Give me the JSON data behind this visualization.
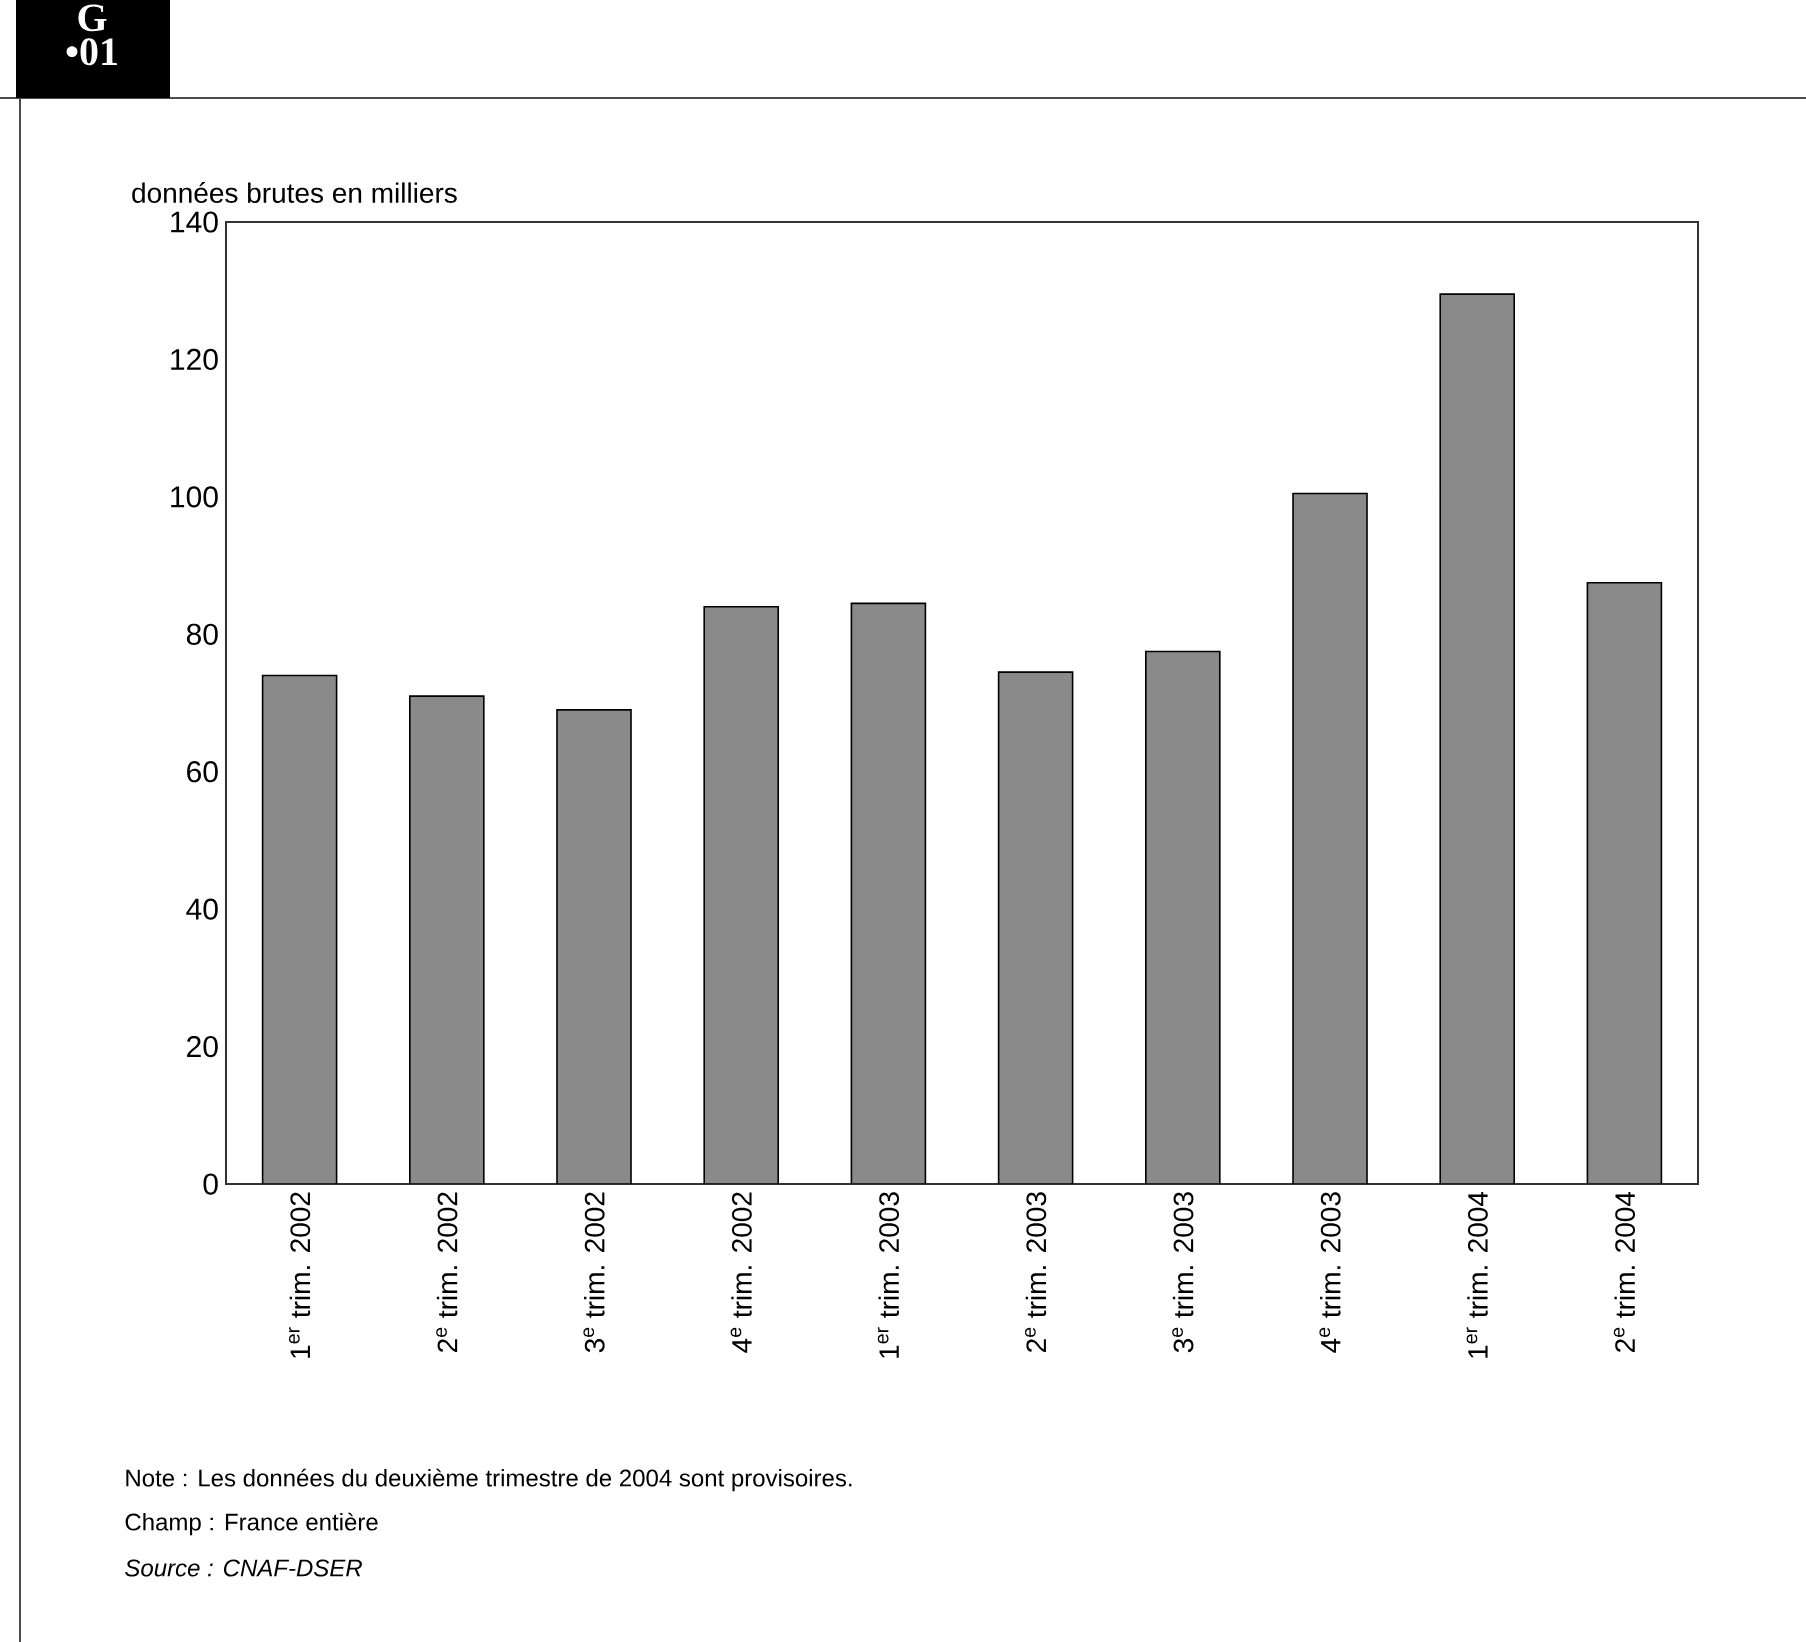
{
  "chart_data": {
    "type": "bar",
    "ylabel": "données brutes en milliers",
    "categories": [
      "1$^{er}$ trim. 2002",
      "2$^{e}$ trim. 2002",
      "3$^{e}$ trim. 2002",
      "4$^{e}$ trim. 2002",
      "1$^{er}$ trim. 2003",
      "2$^{e}$ trim. 2003",
      "3$^{e}$ trim. 2003",
      "4$^{e}$ trim. 2003",
      "1$^{er}$ trim. 2004",
      "2$^{e}$ trim. 2004"
    ],
    "values": [
      74,
      71,
      69,
      84,
      84.5,
      74.5,
      77.5,
      100.5,
      129.5,
      87.5
    ],
    "color": "#8a8a8a",
    "ylim": [
      0,
      140
    ],
    "yticks": [
      0,
      20,
      40,
      60,
      80,
      100,
      120,
      140
    ],
    "annotations": [
      "G •01",
      "Note : Les données du deuxième trimestre de 2004 sont provisoires.",
      "Champ : France entière",
      "Source : CNAF-DSER"
    ]
  }
}
